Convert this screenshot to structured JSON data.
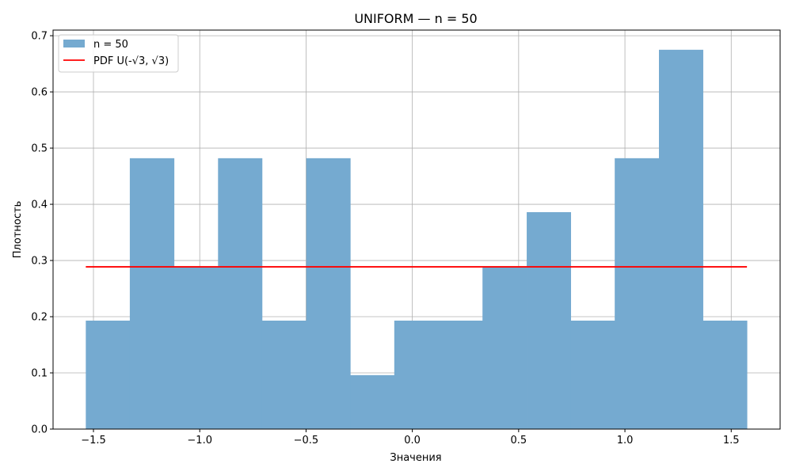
{
  "chart_data": {
    "type": "bar",
    "title": "UNIFORM — n = 50",
    "xlabel": "Значения",
    "ylabel": "Плотность",
    "xlim": [
      -1.69,
      1.73
    ],
    "ylim": [
      0.0,
      0.71
    ],
    "xticks": [
      -1.5,
      -1.0,
      -0.5,
      0.0,
      0.5,
      1.0,
      1.5
    ],
    "xtick_labels": [
      "−1.5",
      "−1.0",
      "−0.5",
      "0.0",
      "0.5",
      "1.0",
      "1.5"
    ],
    "yticks": [
      0.0,
      0.1,
      0.2,
      0.3,
      0.4,
      0.5,
      0.6,
      0.7
    ],
    "ytick_labels": [
      "0.0",
      "0.1",
      "0.2",
      "0.3",
      "0.4",
      "0.5",
      "0.6",
      "0.7"
    ],
    "grid": true,
    "legend_position": "top-left",
    "bin_edges": [
      -1.536,
      -1.329,
      -1.121,
      -0.914,
      -0.707,
      -0.499,
      -0.292,
      -0.085,
      0.123,
      0.33,
      0.538,
      0.745,
      0.952,
      1.16,
      1.367,
      1.574
    ],
    "series": [
      {
        "name": "n = 50",
        "kind": "histogram",
        "color": "#75aad0",
        "values": [
          0.193,
          0.482,
          0.289,
          0.482,
          0.193,
          0.482,
          0.096,
          0.193,
          0.193,
          0.289,
          0.386,
          0.193,
          0.482,
          0.675,
          0.193
        ]
      },
      {
        "name": "PDF U(-√3, √3)",
        "kind": "line",
        "color": "#ff0000",
        "x": [
          -1.536,
          1.574
        ],
        "y": [
          0.2887,
          0.2887
        ]
      }
    ]
  }
}
